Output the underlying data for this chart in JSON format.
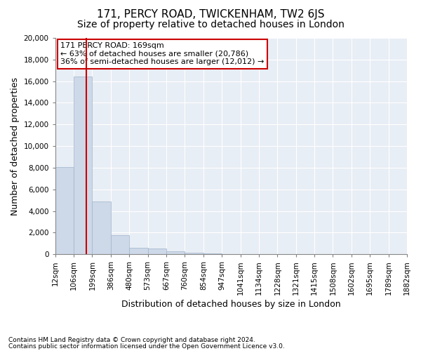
{
  "title": "171, PERCY ROAD, TWICKENHAM, TW2 6JS",
  "subtitle": "Size of property relative to detached houses in London",
  "xlabel": "Distribution of detached houses by size in London",
  "ylabel": "Number of detached properties",
  "footnote1": "Contains HM Land Registry data © Crown copyright and database right 2024.",
  "footnote2": "Contains public sector information licensed under the Open Government Licence v3.0.",
  "property_size": 169,
  "property_label": "171 PERCY ROAD: 169sqm",
  "annotation_line1": "← 63% of detached houses are smaller (20,786)",
  "annotation_line2": "36% of semi-detached houses are larger (12,012) →",
  "bar_color": "#cdd8e8",
  "bar_edge_color": "#a0b4cc",
  "vline_color": "#cc0000",
  "annotation_box_color": "#cc0000",
  "background_color": "#e8eef5",
  "ylim": [
    0,
    20000
  ],
  "yticks": [
    0,
    2000,
    4000,
    6000,
    8000,
    10000,
    12000,
    14000,
    16000,
    18000,
    20000
  ],
  "bin_edges": [
    12,
    106,
    199,
    386,
    480,
    573,
    667,
    760,
    854,
    947,
    1041,
    1134,
    1228,
    1321,
    1415,
    1508,
    1602,
    1695,
    1789,
    1882
  ],
  "bin_labels": [
    "12sqm",
    "106sqm",
    "199sqm",
    "386sqm",
    "480sqm",
    "573sqm",
    "667sqm",
    "760sqm",
    "854sqm",
    "947sqm",
    "1041sqm",
    "1134sqm",
    "1228sqm",
    "1321sqm",
    "1415sqm",
    "1508sqm",
    "1602sqm",
    "1695sqm",
    "1789sqm",
    "1882sqm"
  ],
  "bar_heights": [
    8050,
    16400,
    4900,
    1800,
    600,
    550,
    280,
    130,
    100,
    50,
    0,
    0,
    0,
    0,
    0,
    0,
    0,
    0,
    0
  ],
  "grid_color": "#ffffff",
  "title_fontsize": 11,
  "subtitle_fontsize": 10,
  "axis_label_fontsize": 9,
  "tick_fontsize": 7.5,
  "annotation_fontsize": 8
}
